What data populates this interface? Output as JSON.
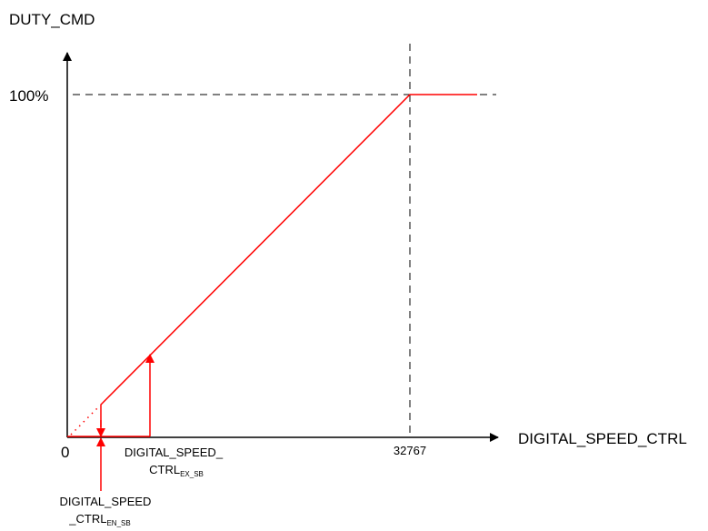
{
  "labels": {
    "y_axis": "DUTY_CMD",
    "x_axis": "DIGITAL_SPEED_CTRL",
    "y_100": "100%",
    "origin": "0",
    "x_max": "32767",
    "ex_line1": "DIGITAL_SPEED_",
    "ex_line2_main": "CTRL",
    "ex_line2_sub": "EX_SB",
    "en_line1": "DIGITAL_SPEED",
    "en_line2_main": "_CTRL",
    "en_line2_sub": "EN_SB"
  },
  "colors": {
    "axis": "#000000",
    "curve": "#ff0000"
  }
}
